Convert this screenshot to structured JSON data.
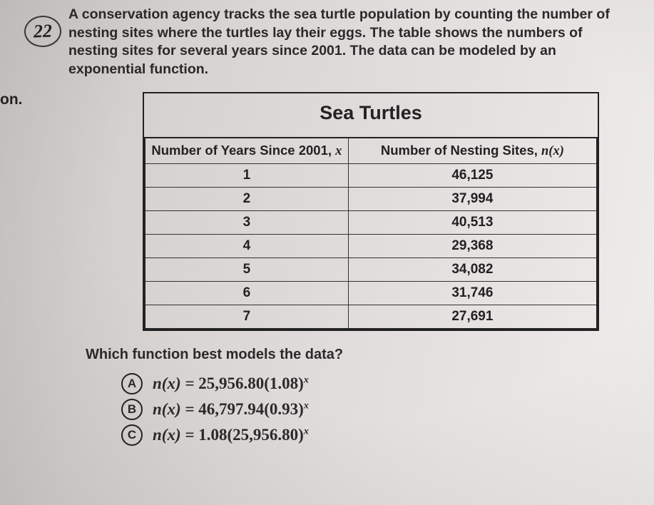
{
  "left_label": "on.",
  "question_number": "22",
  "question_text": "A conservation agency tracks the sea turtle population by counting the number of nesting sites where the turtles lay their eggs. The table shows the numbers of nesting sites for several years since 2001. The data can be modeled by an exponential function.",
  "table": {
    "title": "Sea Turtles",
    "col1_header": "Number of Years Since 2001, ",
    "col1_var": "x",
    "col2_header": "Number of Nesting Sites, ",
    "col2_var": "n(x)",
    "rows": [
      {
        "x": "1",
        "nx": "46,125"
      },
      {
        "x": "2",
        "nx": "37,994"
      },
      {
        "x": "3",
        "nx": "40,513"
      },
      {
        "x": "4",
        "nx": "29,368"
      },
      {
        "x": "5",
        "nx": "34,082"
      },
      {
        "x": "6",
        "nx": "31,746"
      },
      {
        "x": "7",
        "nx": "27,691"
      }
    ]
  },
  "prompt": "Which function best models the data?",
  "choices": [
    {
      "letter": "A",
      "lhs": "n(x) = ",
      "num1": "25,956.80",
      "open": "(",
      "num2": "1.08",
      "close": ")",
      "exp": "x"
    },
    {
      "letter": "B",
      "lhs": "n(x) = ",
      "num1": "46,797.94",
      "open": "(",
      "num2": "0.93",
      "close": ")",
      "exp": "x"
    },
    {
      "letter": "C",
      "lhs": "n(x) = ",
      "num1": "1.08",
      "open": "(",
      "num2": "25,956.80",
      "close": ")",
      "exp": "x"
    }
  ],
  "style": {
    "body_font_size": 19,
    "title_font_size": 27,
    "cell_font_size": 19,
    "choice_font_size": 23,
    "text_color": "#2a2a2a",
    "border_color": "#222222",
    "background_gradient": [
      "#c8c5c2",
      "#f0eeed"
    ]
  }
}
